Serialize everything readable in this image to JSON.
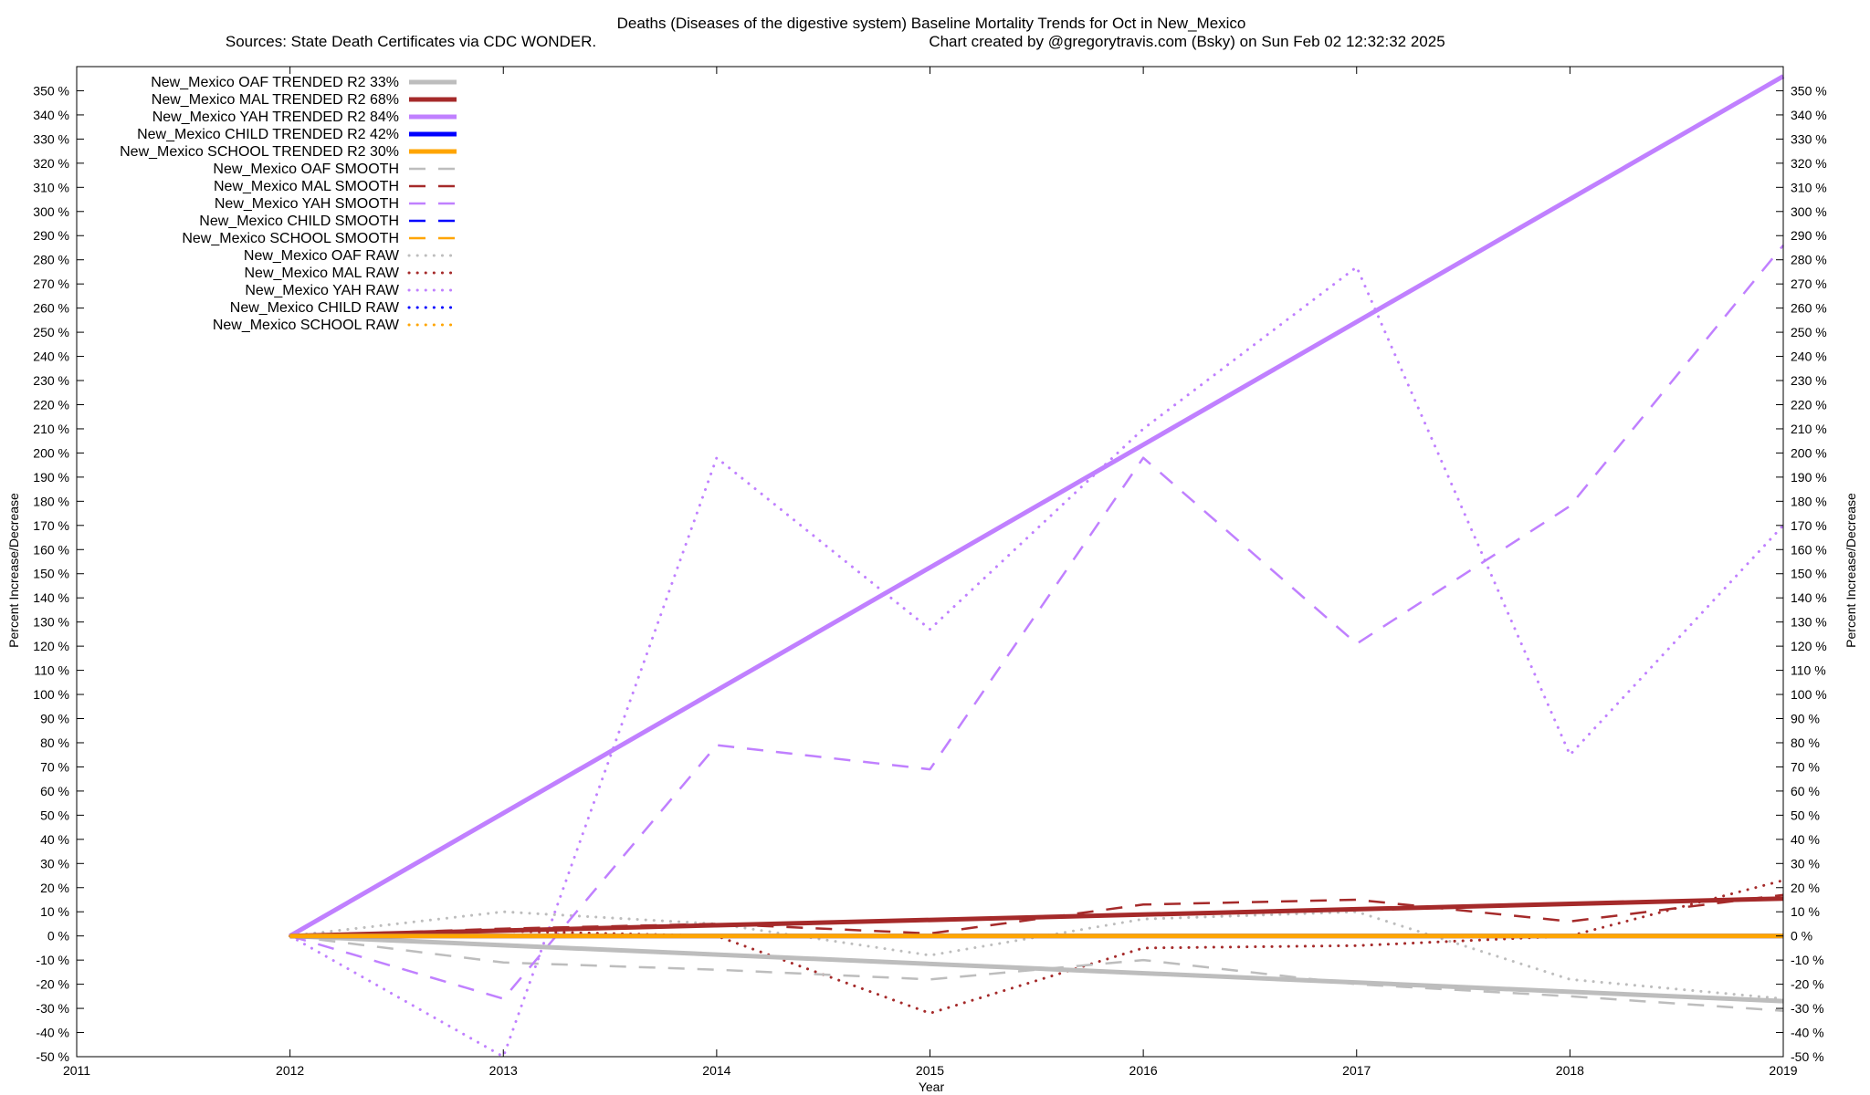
{
  "chart_data": {
    "type": "line",
    "title": "Deaths (Diseases of the digestive system)  Baseline Mortality Trends for Oct in New_Mexico",
    "subtitle_left": "Sources: State Death Certificates via CDC WONDER.",
    "subtitle_right": "Chart created by @gregorytravis.com (Bsky) on Sun Feb 02 12:32:32 2025",
    "xlabel": "Year",
    "ylabel_left": "Percent Increase/Decrease",
    "ylabel_right": "Percent Increase/Decrease",
    "xlim": [
      2011,
      2019
    ],
    "ylim": [
      -50,
      360
    ],
    "x_ticks": [
      2011,
      2012,
      2013,
      2014,
      2015,
      2016,
      2017,
      2018,
      2019
    ],
    "y_tick_step": 10,
    "y_tick_min": -50,
    "y_tick_max": 350,
    "y_tick_suffix": " %",
    "grid": false,
    "legend_position": "top-left",
    "series": [
      {
        "name": "New_Mexico OAF TRENDED R2  33%",
        "style": "trend",
        "color": "#bdbdbd",
        "x": [
          2012,
          2019
        ],
        "y": [
          0,
          -27
        ]
      },
      {
        "name": "New_Mexico MAL TRENDED R2  68%",
        "style": "trend",
        "color": "#a52a2a",
        "x": [
          2012,
          2019
        ],
        "y": [
          0,
          15.5
        ]
      },
      {
        "name": "New_Mexico YAH TRENDED R2  84%",
        "style": "trend",
        "color": "#c080ff",
        "x": [
          2012,
          2019
        ],
        "y": [
          0,
          356
        ]
      },
      {
        "name": "New_Mexico CHILD TRENDED R2  42%",
        "style": "trend",
        "color": "#0000ff",
        "x": [
          2012,
          2019
        ],
        "y": [
          0,
          0
        ]
      },
      {
        "name": "New_Mexico SCHOOL TRENDED R2  30%",
        "style": "trend",
        "color": "#ffa500",
        "x": [
          2012,
          2019
        ],
        "y": [
          0,
          0
        ]
      },
      {
        "name": "New_Mexico OAF SMOOTH",
        "style": "smooth",
        "color": "#bdbdbd",
        "x": [
          2012,
          2013,
          2014,
          2015,
          2016,
          2017,
          2018,
          2019
        ],
        "y": [
          0,
          -11,
          -14,
          -18,
          -10,
          -20,
          -25,
          -31
        ]
      },
      {
        "name": "New_Mexico MAL SMOOTH",
        "style": "smooth",
        "color": "#a52a2a",
        "x": [
          2012,
          2013,
          2014,
          2015,
          2016,
          2017,
          2018,
          2019
        ],
        "y": [
          0,
          3,
          5,
          1,
          13,
          15,
          6,
          17
        ]
      },
      {
        "name": "New_Mexico YAH SMOOTH",
        "style": "smooth",
        "color": "#c080ff",
        "x": [
          2012,
          2013,
          2014,
          2015,
          2016,
          2017,
          2018,
          2019
        ],
        "y": [
          0,
          -26,
          79,
          69,
          198,
          121,
          178,
          286
        ]
      },
      {
        "name": "New_Mexico CHILD SMOOTH",
        "style": "smooth",
        "color": "#0000ff",
        "x": [
          2012,
          2019
        ],
        "y": [
          0,
          0
        ]
      },
      {
        "name": "New_Mexico SCHOOL SMOOTH",
        "style": "smooth",
        "color": "#ffa500",
        "x": [
          2012,
          2019
        ],
        "y": [
          0,
          0
        ]
      },
      {
        "name": "New_Mexico OAF RAW",
        "style": "raw",
        "color": "#bdbdbd",
        "x": [
          2012,
          2013,
          2014,
          2015,
          2016,
          2017,
          2018,
          2019
        ],
        "y": [
          0,
          10,
          5,
          -8,
          7,
          10,
          -18,
          -26
        ]
      },
      {
        "name": "New_Mexico MAL RAW",
        "style": "raw",
        "color": "#a52a2a",
        "x": [
          2012,
          2013,
          2014,
          2015,
          2016,
          2017,
          2018,
          2019
        ],
        "y": [
          0,
          2,
          0,
          -32,
          -5,
          -4,
          0,
          23
        ]
      },
      {
        "name": "New_Mexico YAH RAW",
        "style": "raw",
        "color": "#c080ff",
        "x": [
          2012,
          2013,
          2014,
          2015,
          2016,
          2017,
          2018,
          2019
        ],
        "y": [
          0,
          -50,
          198,
          127,
          210,
          277,
          75,
          170
        ]
      },
      {
        "name": "New_Mexico CHILD RAW",
        "style": "raw",
        "color": "#0000ff",
        "x": [
          2012,
          2019
        ],
        "y": [
          0,
          0
        ]
      },
      {
        "name": "New_Mexico SCHOOL RAW",
        "style": "raw",
        "color": "#ffa500",
        "x": [
          2012,
          2019
        ],
        "y": [
          0,
          0
        ]
      }
    ]
  }
}
